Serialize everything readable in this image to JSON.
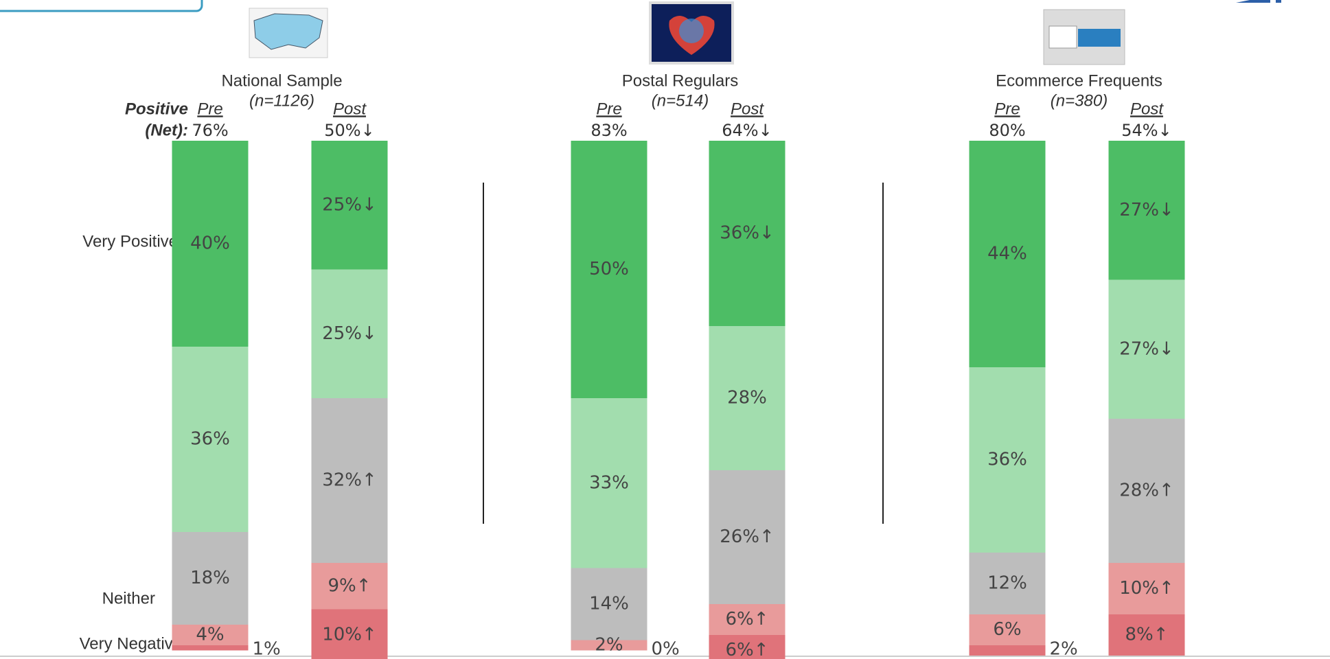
{
  "chart_data": {
    "type": "stacked_bar",
    "ylim": [
      0,
      100
    ],
    "net_title": "Positive",
    "net_subtitle": "(Net):",
    "row_labels": [
      "Very Positive",
      "Neither",
      "Very Negative"
    ],
    "colors": [
      "#4dbd65",
      "#a2ddae",
      "#bdbdbd",
      "#e89b9b",
      "#e0737a"
    ],
    "groups": [
      {
        "title": "National Sample",
        "n_label": "(n=1126)",
        "bars": [
          {
            "label": "Pre",
            "net": 76,
            "net_label": "76%",
            "values": [
              40,
              36,
              18,
              4,
              1
            ],
            "value_labels": [
              "40%",
              "36%",
              "18%",
              "4%",
              "1%"
            ]
          },
          {
            "label": "Post",
            "net": 50,
            "net_label": "50%↓",
            "values": [
              25,
              25,
              32,
              9,
              10
            ],
            "value_labels": [
              "25%↓",
              "25%↓",
              "32%↑",
              "9%↑",
              "10%↑"
            ]
          }
        ]
      },
      {
        "title": "Postal Regulars",
        "n_label": "(n=514)",
        "bars": [
          {
            "label": "Pre",
            "net": 83,
            "net_label": "83%",
            "values": [
              50,
              33,
              14,
              2,
              0
            ],
            "value_labels": [
              "50%",
              "33%",
              "14%",
              "2%",
              "0%"
            ]
          },
          {
            "label": "Post",
            "net": 64,
            "net_label": "64%↓",
            "values": [
              36,
              28,
              26,
              6,
              6
            ],
            "value_labels": [
              "36%↓",
              "28%",
              "26%↑",
              "6%↑",
              "6%↑"
            ]
          }
        ]
      },
      {
        "title": "Ecommerce Frequents",
        "n_label": "(n=380)",
        "bars": [
          {
            "label": "Pre",
            "net": 80,
            "net_label": "80%",
            "values": [
              44,
              36,
              12,
              6,
              2
            ],
            "value_labels": [
              "44%",
              "36%",
              "12%",
              "6%",
              "2%"
            ]
          },
          {
            "label": "Post",
            "net": 54,
            "net_label": "54%↓",
            "values": [
              27,
              27,
              28,
              10,
              8
            ],
            "value_labels": [
              "27%↓",
              "27%↓",
              "28%↑",
              "10%↑",
              "8%↑"
            ]
          }
        ]
      }
    ]
  }
}
